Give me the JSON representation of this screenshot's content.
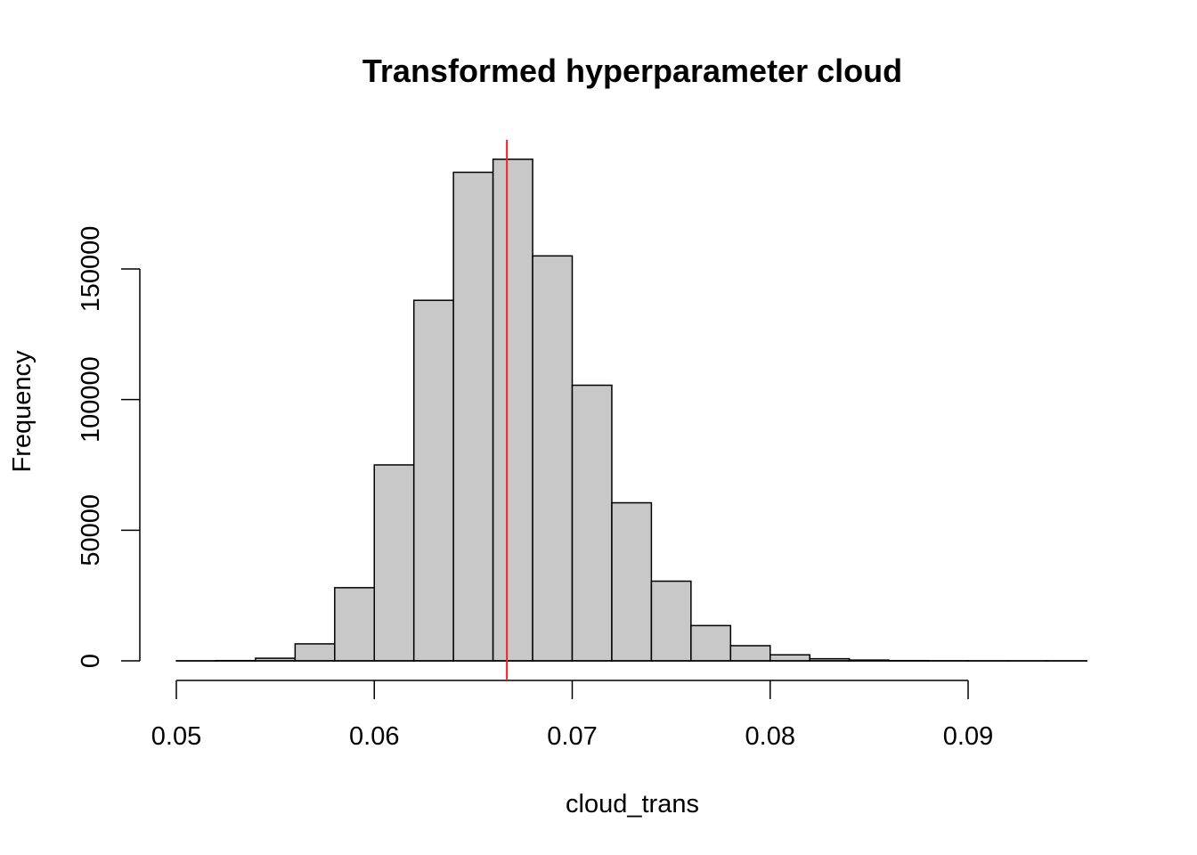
{
  "chart_data": {
    "type": "bar",
    "title": "Transformed hyperparameter cloud",
    "xlabel": "cloud_trans",
    "ylabel": "Frequency",
    "xlim": [
      0.05,
      0.096
    ],
    "ylim": [
      0,
      190000
    ],
    "bin_width": 0.002,
    "bins": [
      {
        "start": 0.05,
        "end": 0.052,
        "count": 0
      },
      {
        "start": 0.052,
        "end": 0.054,
        "count": 100
      },
      {
        "start": 0.054,
        "end": 0.056,
        "count": 1000
      },
      {
        "start": 0.056,
        "end": 0.058,
        "count": 6500
      },
      {
        "start": 0.058,
        "end": 0.06,
        "count": 28000
      },
      {
        "start": 0.06,
        "end": 0.062,
        "count": 75000
      },
      {
        "start": 0.062,
        "end": 0.064,
        "count": 138000
      },
      {
        "start": 0.064,
        "end": 0.066,
        "count": 187000
      },
      {
        "start": 0.066,
        "end": 0.068,
        "count": 192000
      },
      {
        "start": 0.068,
        "end": 0.07,
        "count": 155000
      },
      {
        "start": 0.07,
        "end": 0.072,
        "count": 105500
      },
      {
        "start": 0.072,
        "end": 0.074,
        "count": 60500
      },
      {
        "start": 0.074,
        "end": 0.076,
        "count": 30500
      },
      {
        "start": 0.076,
        "end": 0.078,
        "count": 13500
      },
      {
        "start": 0.078,
        "end": 0.08,
        "count": 5800
      },
      {
        "start": 0.08,
        "end": 0.082,
        "count": 2300
      },
      {
        "start": 0.082,
        "end": 0.084,
        "count": 800
      },
      {
        "start": 0.084,
        "end": 0.086,
        "count": 300
      },
      {
        "start": 0.086,
        "end": 0.088,
        "count": 100
      },
      {
        "start": 0.088,
        "end": 0.09,
        "count": 30
      },
      {
        "start": 0.09,
        "end": 0.092,
        "count": 10
      },
      {
        "start": 0.092,
        "end": 0.094,
        "count": 5
      },
      {
        "start": 0.094,
        "end": 0.096,
        "count": 2
      }
    ],
    "x_ticks": [
      "0.05",
      "0.06",
      "0.07",
      "0.08",
      "0.09"
    ],
    "y_ticks": [
      "0",
      "50000",
      "100000",
      "150000"
    ],
    "reference_line": {
      "x": 0.0667
    },
    "grid": false,
    "colors": {
      "bar_fill": "#c8c8c8",
      "bar_stroke": "#000000",
      "reference_line": "#ee2222"
    }
  }
}
